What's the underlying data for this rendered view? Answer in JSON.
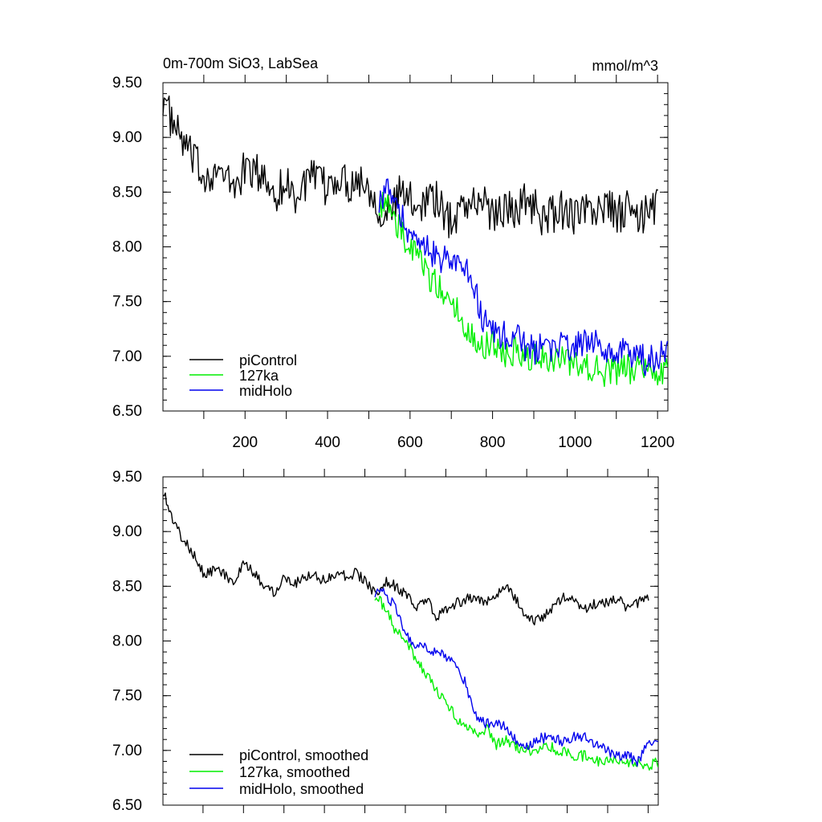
{
  "figure": {
    "title_left": "0m-700m SiO3, LabSea",
    "title_right": "mmol/m^3"
  },
  "chart_data": [
    {
      "type": "line",
      "title": "0m-700m SiO3, LabSea",
      "units": "mmol/m^3",
      "xlabel": "",
      "ylabel": "",
      "xlim": [
        1,
        1225
      ],
      "ylim": [
        6.5,
        9.5
      ],
      "x_ticks": [
        200,
        400,
        600,
        800,
        1000,
        1200
      ],
      "y_ticks": [
        "6.50",
        "7.00",
        "7.50",
        "8.00",
        "8.50",
        "9.00",
        "9.50"
      ],
      "legend_position": "bottom-left",
      "series": [
        {
          "name": "piControl",
          "color": "#000000",
          "x_start": 1,
          "x_step": 25,
          "values": [
            9.38,
            9.1,
            8.95,
            8.78,
            8.65,
            8.7,
            8.62,
            8.55,
            8.72,
            8.68,
            8.6,
            8.5,
            8.58,
            8.45,
            8.62,
            8.6,
            8.52,
            8.65,
            8.58,
            8.62,
            8.55,
            8.35,
            8.3,
            8.5,
            8.42,
            8.4,
            8.5,
            8.35,
            8.22,
            8.4,
            8.4,
            8.42,
            8.3,
            8.35,
            8.33,
            8.42,
            8.38,
            8.25,
            8.3,
            8.35,
            8.28,
            8.32,
            8.33,
            8.38,
            8.28,
            8.35,
            8.25,
            8.3,
            8.42
          ],
          "noise": 0.18
        },
        {
          "name": "127ka",
          "color": "#00ee00",
          "x_start": 525,
          "x_step": 25,
          "values": [
            8.42,
            8.35,
            8.15,
            8.0,
            7.85,
            7.72,
            7.6,
            7.5,
            7.35,
            7.2,
            7.1,
            7.12,
            7.0,
            7.05,
            7.0,
            6.98,
            6.95,
            7.0,
            6.95,
            6.9,
            6.92,
            6.9,
            6.85,
            6.88,
            6.88,
            6.9,
            6.88,
            6.85,
            6.9
          ],
          "noise": 0.14
        },
        {
          "name": "midHolo",
          "color": "#0000ee",
          "x_start": 525,
          "x_step": 25,
          "values": [
            8.45,
            8.5,
            8.3,
            8.1,
            8.0,
            7.95,
            7.9,
            7.85,
            7.82,
            7.7,
            7.35,
            7.25,
            7.2,
            7.2,
            7.1,
            7.05,
            7.08,
            7.1,
            7.1,
            7.08,
            7.12,
            7.1,
            7.08,
            7.0,
            7.05,
            7.0,
            6.95,
            7.0,
            7.05
          ],
          "noise": 0.14
        }
      ]
    },
    {
      "type": "line",
      "title": "",
      "xlabel": "",
      "ylabel": "",
      "xlim": [
        1,
        1225
      ],
      "ylim": [
        6.5,
        9.5
      ],
      "y_ticks": [
        "6.50",
        "7.00",
        "7.50",
        "8.00",
        "8.50",
        "9.00",
        "9.50"
      ],
      "legend_position": "bottom-left",
      "series": [
        {
          "name": "piControl, smoothed",
          "color": "#000000",
          "x_start": 1,
          "x_step": 25,
          "values": [
            9.38,
            9.1,
            8.92,
            8.8,
            8.62,
            8.65,
            8.62,
            8.52,
            8.7,
            8.62,
            8.5,
            8.45,
            8.6,
            8.52,
            8.6,
            8.6,
            8.55,
            8.62,
            8.6,
            8.62,
            8.55,
            8.42,
            8.55,
            8.5,
            8.42,
            8.3,
            8.4,
            8.2,
            8.3,
            8.35,
            8.38,
            8.4,
            8.35,
            8.42,
            8.5,
            8.38,
            8.18,
            8.2,
            8.25,
            8.35,
            8.42,
            8.32,
            8.3,
            8.35,
            8.35,
            8.38,
            8.28,
            8.35,
            8.4
          ],
          "noise": 0.05
        },
        {
          "name": "127ka, smoothed",
          "color": "#00ee00",
          "x_start": 525,
          "x_step": 25,
          "values": [
            8.42,
            8.3,
            8.1,
            8.0,
            7.85,
            7.7,
            7.55,
            7.45,
            7.3,
            7.2,
            7.15,
            7.2,
            7.05,
            7.1,
            7.02,
            7.0,
            7.0,
            7.05,
            7.0,
            6.98,
            6.95,
            6.95,
            6.9,
            6.92,
            6.92,
            6.9,
            6.88,
            6.85,
            6.9
          ],
          "noise": 0.05
        },
        {
          "name": "midHolo, smoothed",
          "color": "#0000ee",
          "x_start": 525,
          "x_step": 25,
          "values": [
            8.45,
            8.45,
            8.3,
            8.05,
            7.98,
            7.95,
            7.9,
            7.85,
            7.8,
            7.6,
            7.3,
            7.25,
            7.25,
            7.2,
            7.08,
            7.05,
            7.1,
            7.12,
            7.1,
            7.08,
            7.15,
            7.1,
            7.05,
            7.0,
            6.95,
            6.95,
            6.9,
            7.05,
            7.1
          ],
          "noise": 0.05
        }
      ]
    }
  ]
}
